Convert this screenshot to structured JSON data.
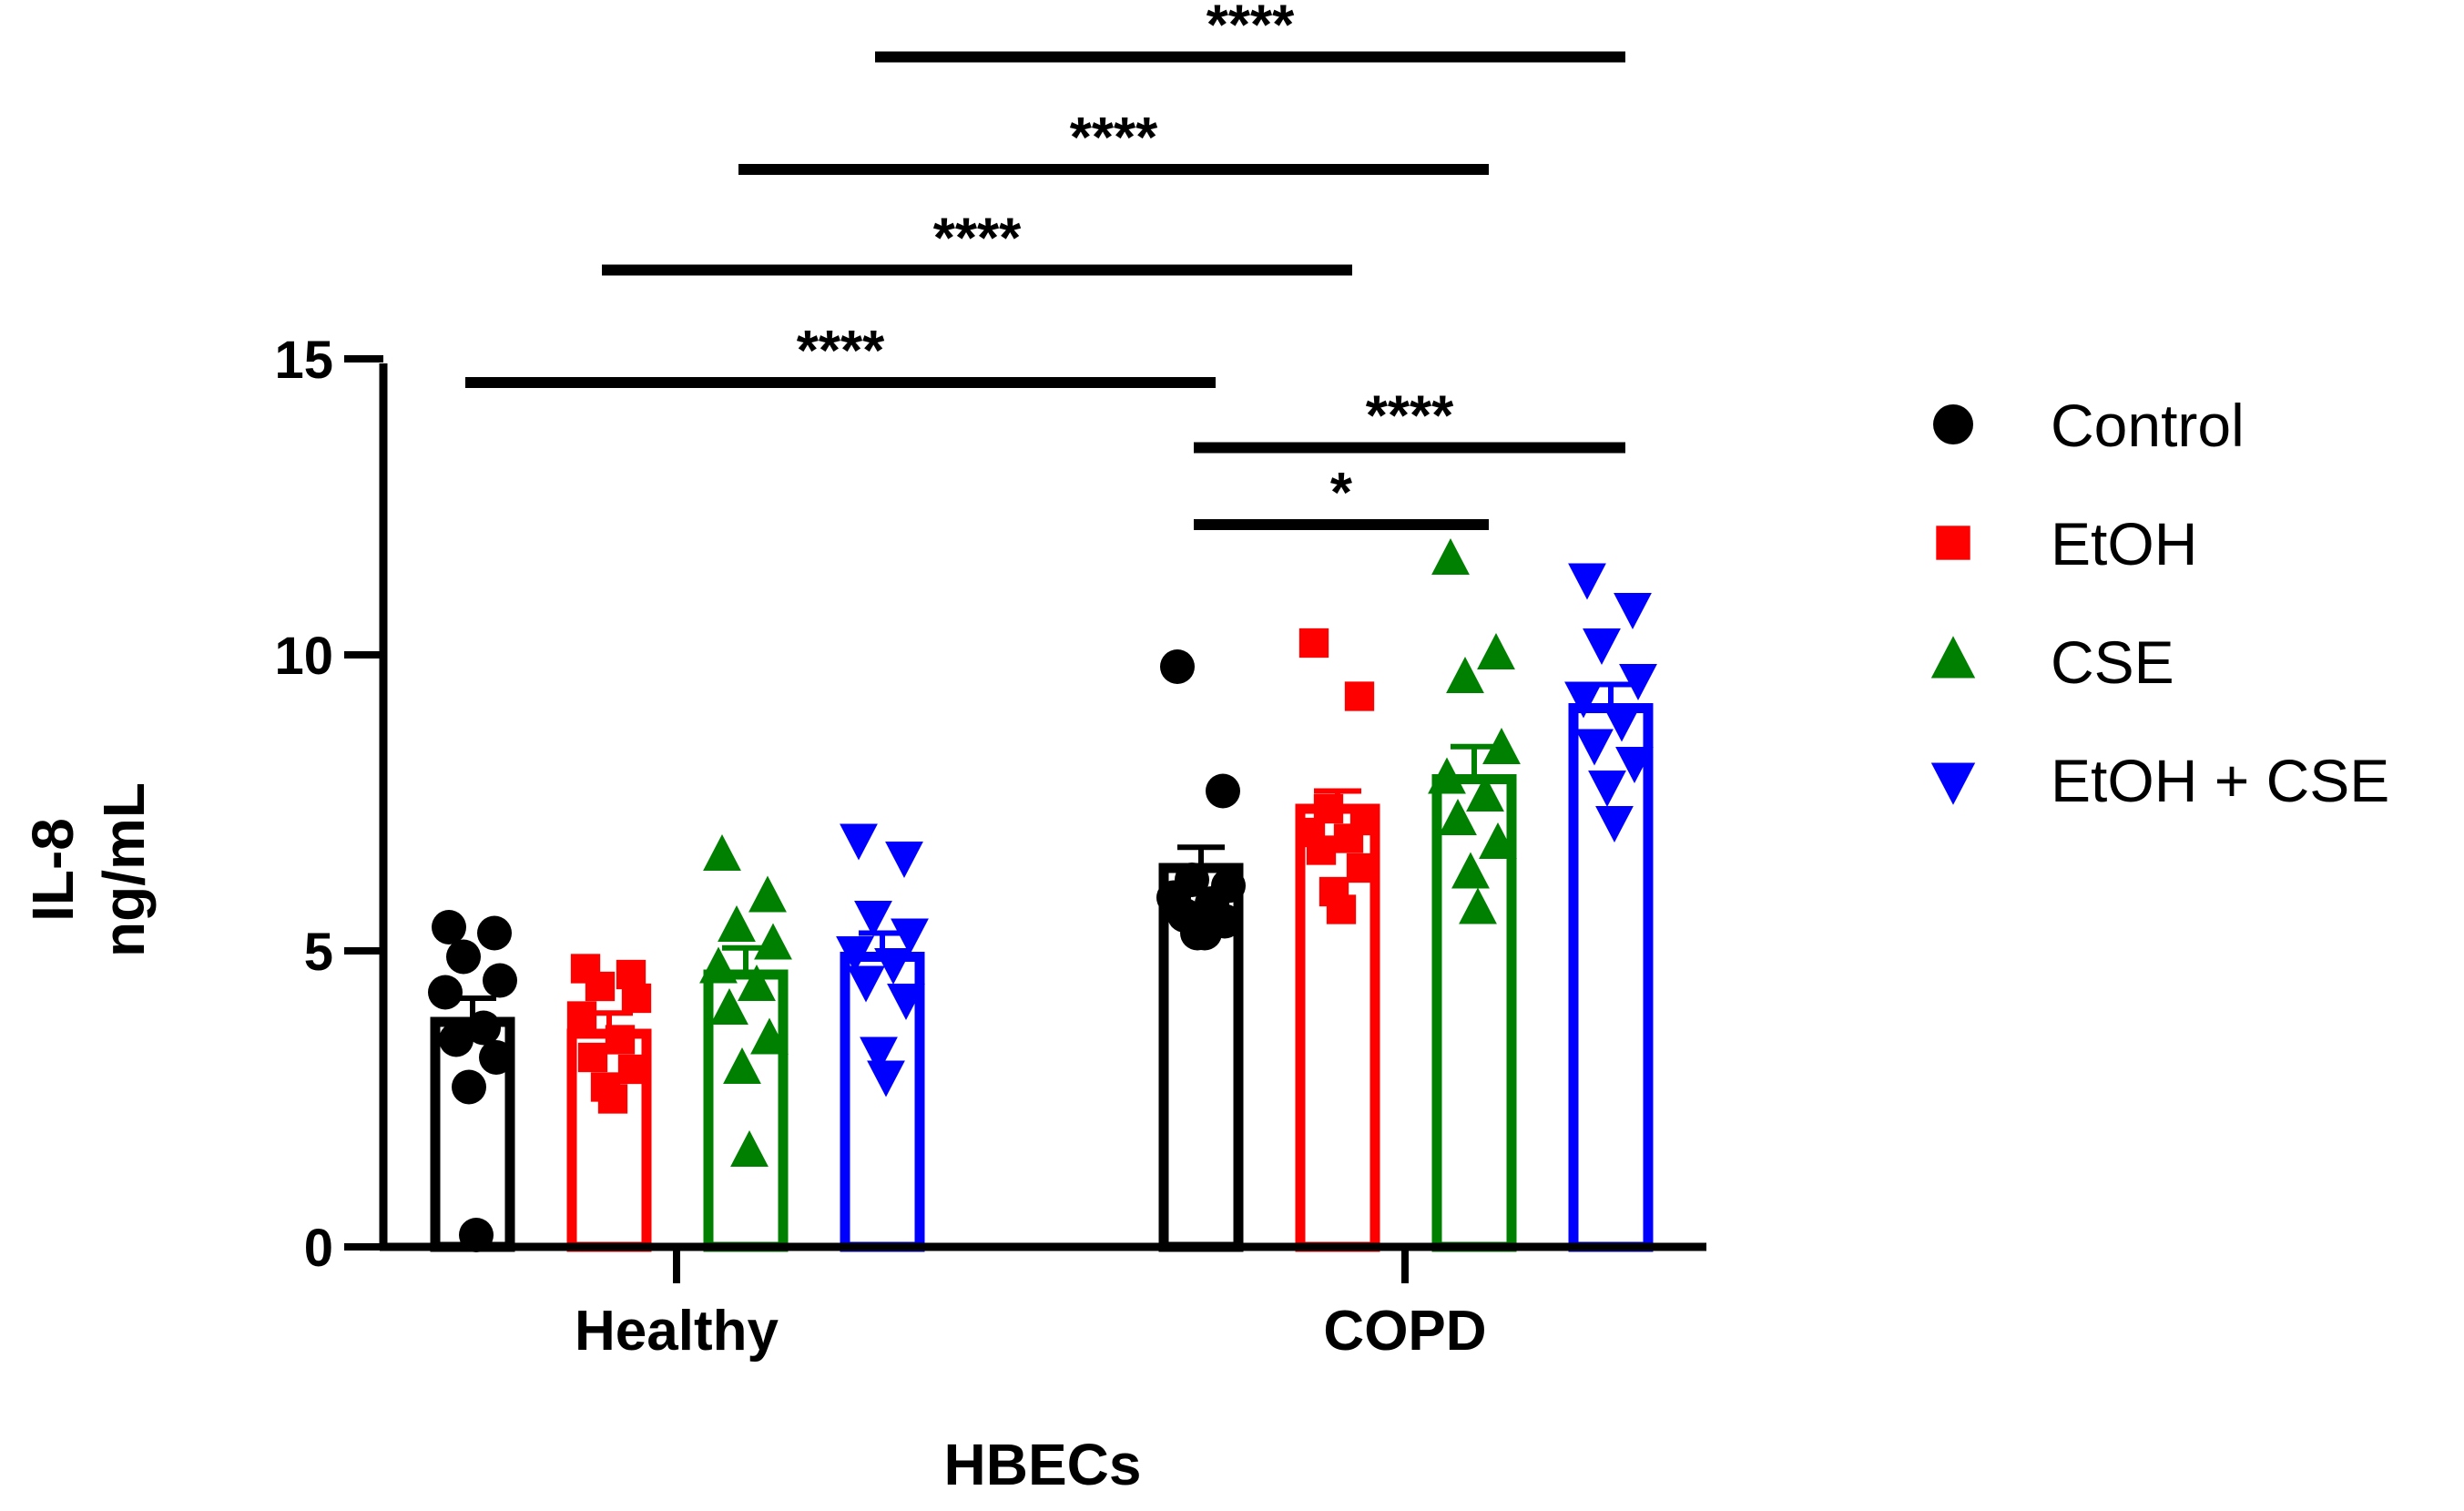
{
  "chart_data": {
    "type": "bar",
    "title": "",
    "xlabel": "HBECs",
    "ylabel_line1": "IL-8",
    "ylabel_line2": "ng/mL",
    "ylim": [
      0,
      15
    ],
    "yticks": [
      0,
      5,
      10,
      15
    ],
    "ytick_labels": [
      "0",
      "5",
      "10",
      "15"
    ],
    "categories": [
      "Healthy",
      "COPD"
    ],
    "legend_position": "right",
    "series": [
      {
        "name": "Control",
        "color": "#000000",
        "marker": "circle",
        "values": [
          3.8,
          6.4
        ],
        "errors": [
          0.4,
          0.35
        ],
        "points": [
          [
            5.4,
            5.3,
            4.9,
            4.5,
            4.3,
            3.7,
            3.5,
            3.2,
            2.7,
            0.2
          ],
          [
            9.8,
            7.7,
            6.2,
            6.1,
            5.9,
            5.8,
            5.6,
            5.5,
            5.3,
            5.3
          ]
        ]
      },
      {
        "name": "EtOH",
        "color": "#ff0000",
        "marker": "square",
        "values": [
          3.6,
          7.4
        ],
        "errors": [
          0.35,
          0.3
        ],
        "points": [
          [
            4.7,
            4.6,
            4.4,
            4.2,
            3.9,
            3.5,
            3.2,
            3.0,
            2.7,
            2.5
          ],
          [
            10.2,
            9.3,
            7.4,
            7.2,
            7.0,
            6.9,
            6.7,
            6.4,
            6.0,
            5.7
          ]
        ]
      },
      {
        "name": "CSE",
        "color": "#008000",
        "marker": "triangle-up",
        "values": [
          4.6,
          7.9
        ],
        "errors": [
          0.45,
          0.55
        ],
        "points": [
          [
            6.6,
            5.9,
            5.4,
            5.1,
            4.7,
            4.4,
            4.0,
            3.5,
            3.0,
            1.6
          ],
          [
            11.6,
            10.0,
            9.6,
            8.4,
            7.9,
            7.6,
            7.2,
            6.8,
            6.3,
            5.7
          ]
        ]
      },
      {
        "name": "EtOH + CSE",
        "color": "#0000ff",
        "marker": "triangle-down",
        "values": [
          4.9,
          9.1
        ],
        "errors": [
          0.4,
          0.4
        ],
        "points": [
          [
            6.9,
            6.6,
            5.6,
            5.3,
            5.0,
            4.8,
            4.5,
            4.2,
            3.3,
            2.9
          ],
          [
            11.3,
            10.8,
            10.2,
            9.6,
            9.3,
            8.9,
            8.5,
            8.2,
            7.8,
            7.2
          ]
        ]
      }
    ],
    "significance": [
      {
        "label": "****",
        "from": [
          0,
          0
        ],
        "to": [
          1,
          0
        ],
        "y": 14.6
      },
      {
        "label": "****",
        "from": [
          0,
          1
        ],
        "to": [
          1,
          1
        ],
        "y": 16.5
      },
      {
        "label": "****",
        "from": [
          0,
          2
        ],
        "to": [
          1,
          2
        ],
        "y": 18.2
      },
      {
        "label": "****",
        "from": [
          0,
          3
        ],
        "to": [
          1,
          3
        ],
        "y": 20.1
      },
      {
        "label": "****",
        "from": [
          1,
          0
        ],
        "to": [
          1,
          3
        ],
        "y": 13.5
      },
      {
        "label": "*",
        "from": [
          1,
          0
        ],
        "to": [
          1,
          2
        ],
        "y": 12.2
      }
    ]
  }
}
